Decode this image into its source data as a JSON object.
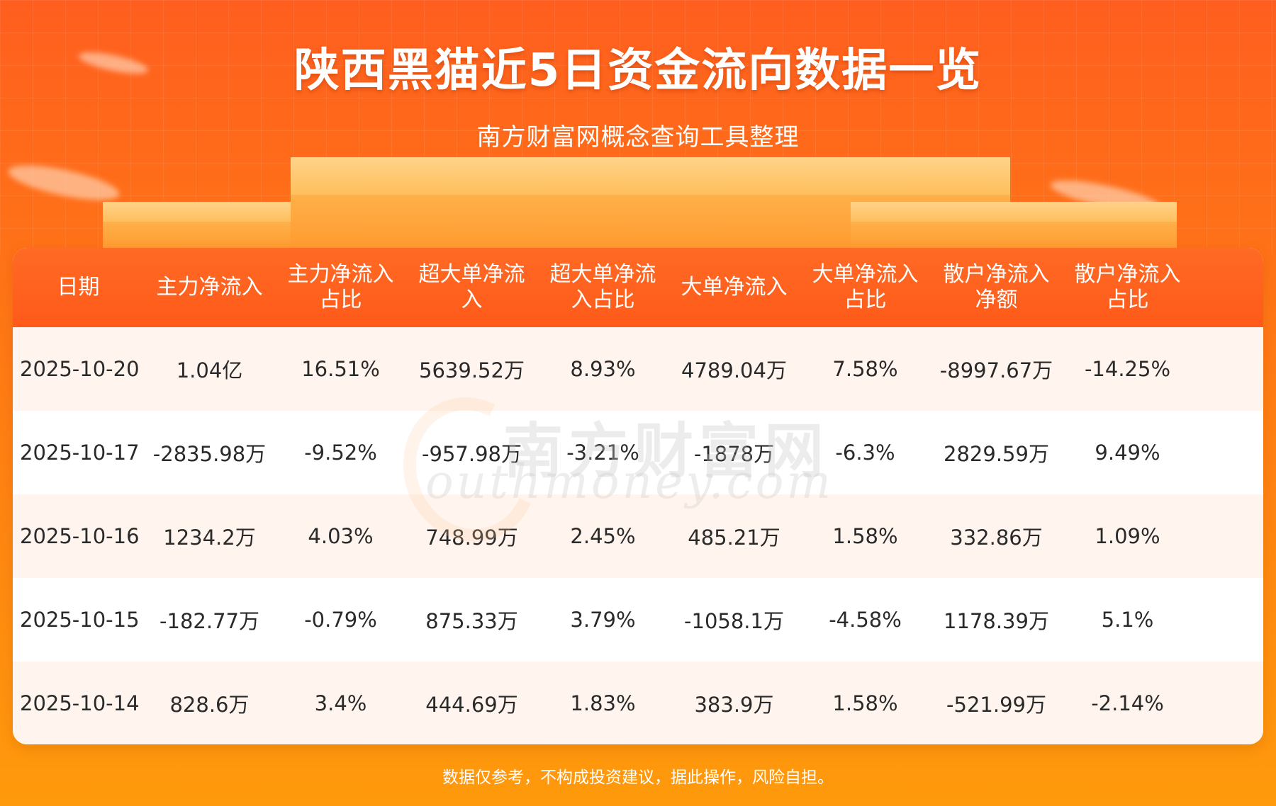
{
  "header": {
    "title": "陕西黑猫近5日资金流向数据一览",
    "subtitle": "南方财富网概念查询工具整理"
  },
  "table": {
    "columns": [
      [
        "日期"
      ],
      [
        "主力净流入"
      ],
      [
        "主力净流入",
        "占比"
      ],
      [
        "超大单净流",
        "入"
      ],
      [
        "超大单净流",
        "入占比"
      ],
      [
        "大单净流入"
      ],
      [
        "大单净流入",
        "占比"
      ],
      [
        "散户净流入",
        "净额"
      ],
      [
        "散户净流入",
        "占比"
      ]
    ],
    "rows": [
      [
        "2025-10-20",
        "1.04亿",
        "16.51%",
        "5639.52万",
        "8.93%",
        "4789.04万",
        "7.58%",
        "-8997.67万",
        "-14.25%"
      ],
      [
        "2025-10-17",
        "-2835.98万",
        "-9.52%",
        "-957.98万",
        "-3.21%",
        "-1878万",
        "-6.3%",
        "2829.59万",
        "9.49%"
      ],
      [
        "2025-10-16",
        "1234.2万",
        "4.03%",
        "748.99万",
        "2.45%",
        "485.21万",
        "1.58%",
        "332.86万",
        "1.09%"
      ],
      [
        "2025-10-15",
        "-182.77万",
        "-0.79%",
        "875.33万",
        "3.79%",
        "-1058.1万",
        "-4.58%",
        "1178.39万",
        "5.1%"
      ],
      [
        "2025-10-14",
        "828.6万",
        "3.4%",
        "444.69万",
        "1.83%",
        "383.9万",
        "1.58%",
        "-521.99万",
        "-2.14%"
      ]
    ]
  },
  "watermark": {
    "cn": "南方财富网",
    "en": "outhmoney.com"
  },
  "footer": {
    "disclaimer": "数据仅参考，不构成投资建议，据此操作，风险自担。"
  },
  "colors": {
    "header_bg": "#ff5a1a",
    "row_alt": "#fff5ee",
    "page_bg": "#ff7a14"
  }
}
